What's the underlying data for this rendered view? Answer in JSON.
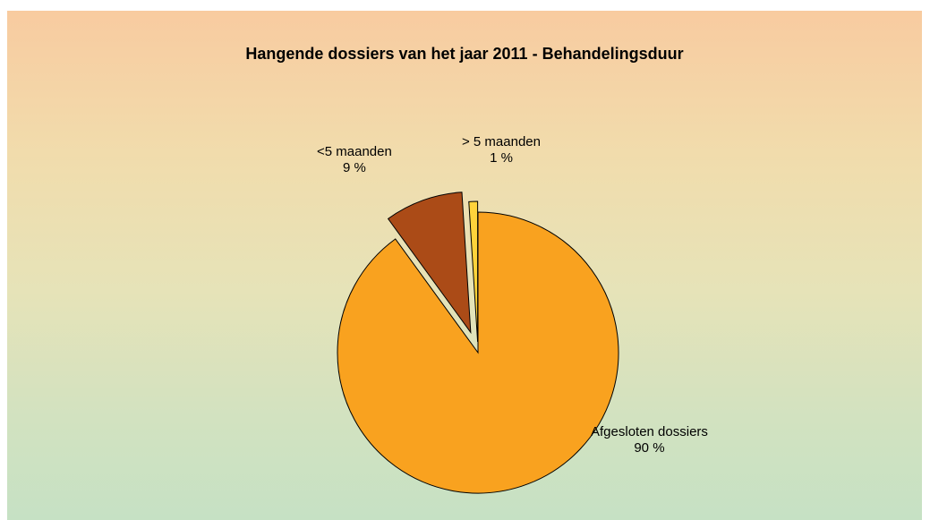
{
  "chart_data": {
    "type": "pie",
    "title": "Hangende dossiers van het jaar 2011 - Behandelingsduur",
    "slices": [
      {
        "label": "Afgesloten dossiers",
        "value": 90,
        "value_label": "90 %",
        "color": "#f9a21f"
      },
      {
        "label": "<5 maanden",
        "value": 9,
        "value_label": "9 %",
        "color": "#ab4b17"
      },
      {
        "label": "> 5 maanden",
        "value": 1,
        "value_label": "1 %",
        "color": "#ffd33b"
      }
    ],
    "exploded": true,
    "legend": "none"
  }
}
